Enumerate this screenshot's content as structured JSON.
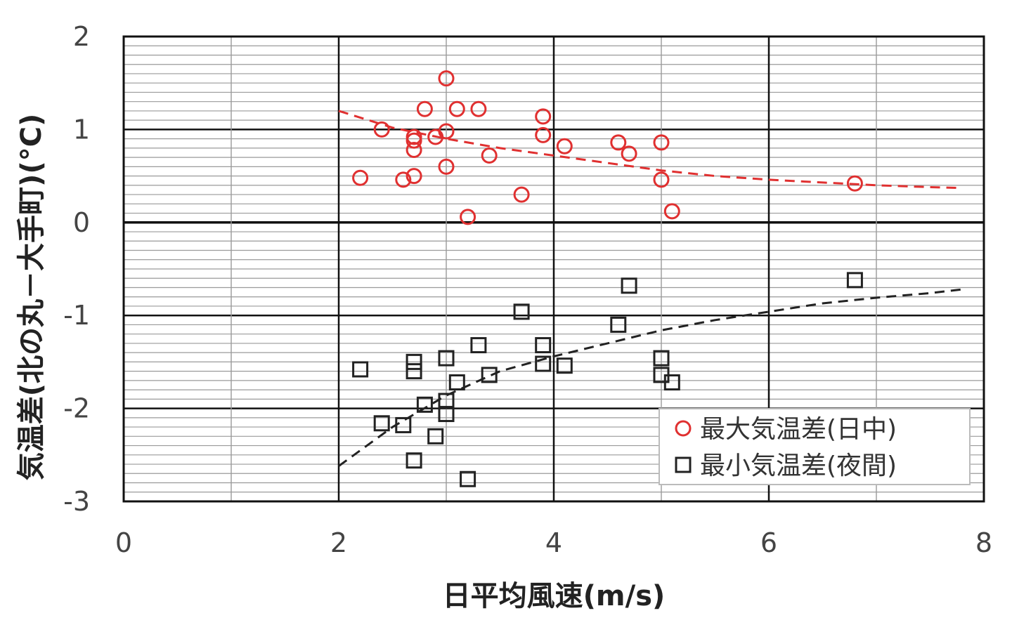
{
  "chart_data": {
    "type": "scatter",
    "xlabel": "日平均風速(m/s)",
    "ylabel": "気温差(北の丸－大手町)(°C)",
    "xlim": [
      0,
      8
    ],
    "ylim": [
      -3,
      2
    ],
    "x_ticks": [
      "0",
      "2",
      "4",
      "6",
      "8"
    ],
    "y_ticks": [
      "2",
      "1",
      "0",
      "-1",
      "-2",
      "-3"
    ],
    "grid": true,
    "legend_position": "bottom-right",
    "series": [
      {
        "name": "最大気温差(日中)",
        "marker": "circle",
        "color": "#e03030",
        "x": [
          2.2,
          2.4,
          2.6,
          2.7,
          2.7,
          2.7,
          2.7,
          2.8,
          2.9,
          3.0,
          3.0,
          3.0,
          3.1,
          3.2,
          3.3,
          3.4,
          3.7,
          3.9,
          3.9,
          4.1,
          4.6,
          4.7,
          5.0,
          5.0,
          5.1,
          6.8
        ],
        "y": [
          0.48,
          1.0,
          0.46,
          0.5,
          0.78,
          0.88,
          0.92,
          1.22,
          0.92,
          1.55,
          0.98,
          0.6,
          1.22,
          0.06,
          1.22,
          0.72,
          0.3,
          1.14,
          0.94,
          0.82,
          0.86,
          0.74,
          0.86,
          0.46,
          0.12,
          0.42
        ]
      },
      {
        "name": "最小気温差(夜間)",
        "marker": "square",
        "color": "#222222",
        "x": [
          2.2,
          2.4,
          2.6,
          2.7,
          2.7,
          2.7,
          2.8,
          2.9,
          3.0,
          3.0,
          3.0,
          3.1,
          3.2,
          3.3,
          3.4,
          3.7,
          3.9,
          3.9,
          4.1,
          4.6,
          4.7,
          5.0,
          5.0,
          5.1,
          6.8
        ],
        "y": [
          -1.58,
          -2.16,
          -2.18,
          -2.56,
          -1.6,
          -1.5,
          -1.96,
          -2.3,
          -2.06,
          -1.92,
          -1.46,
          -1.72,
          -2.76,
          -1.32,
          -1.64,
          -0.96,
          -1.32,
          -1.52,
          -1.54,
          -1.1,
          -0.68,
          -1.64,
          -1.46,
          -1.72,
          -0.62
        ]
      }
    ],
    "trendlines": [
      {
        "series": "最大気温差(日中)",
        "color": "#e03030",
        "x": [
          2.0,
          2.5,
          3.0,
          3.5,
          4.0,
          4.5,
          5.0,
          5.5,
          6.0,
          6.5,
          7.0,
          7.5,
          7.8
        ],
        "y": [
          1.2,
          1.02,
          0.9,
          0.8,
          0.72,
          0.64,
          0.56,
          0.5,
          0.46,
          0.43,
          0.4,
          0.38,
          0.37
        ]
      },
      {
        "series": "最小気温差(夜間)",
        "color": "#222222",
        "x": [
          2.0,
          2.5,
          3.0,
          3.5,
          4.0,
          4.5,
          5.0,
          5.5,
          6.0,
          6.5,
          7.0,
          7.5,
          7.8
        ],
        "y": [
          -2.62,
          -2.2,
          -1.86,
          -1.6,
          -1.44,
          -1.3,
          -1.16,
          -1.05,
          -0.96,
          -0.87,
          -0.81,
          -0.76,
          -0.72
        ]
      }
    ]
  }
}
